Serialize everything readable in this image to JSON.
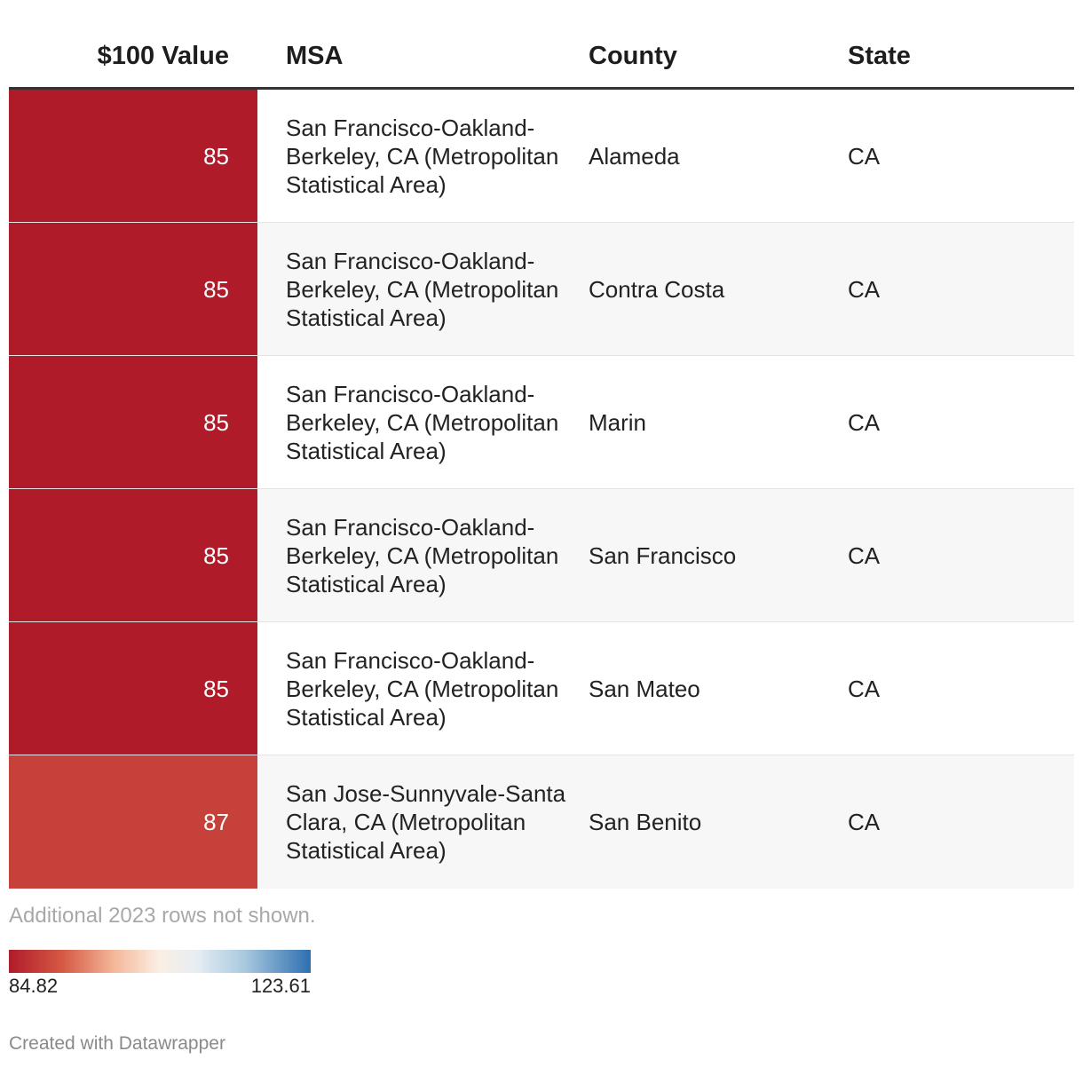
{
  "chart_data": {
    "type": "table",
    "columns": [
      "$100 Value",
      "MSA",
      "County",
      "State"
    ],
    "rows": [
      {
        "value": "85",
        "color": "#b01b2a",
        "msa": "San Francisco-Oakland-Berkeley, CA (Metropolitan Statistical Area)",
        "county": "Alameda",
        "state": "CA"
      },
      {
        "value": "85",
        "color": "#b01b2a",
        "msa": "San Francisco-Oakland-Berkeley, CA (Metropolitan Statistical Area)",
        "county": "Contra Costa",
        "state": "CA"
      },
      {
        "value": "85",
        "color": "#b01b2a",
        "msa": "San Francisco-Oakland-Berkeley, CA (Metropolitan Statistical Area)",
        "county": "Marin",
        "state": "CA"
      },
      {
        "value": "85",
        "color": "#b01b2a",
        "msa": "San Francisco-Oakland-Berkeley, CA (Metropolitan Statistical Area)",
        "county": "San Francisco",
        "state": "CA"
      },
      {
        "value": "85",
        "color": "#b01b2a",
        "msa": "San Francisco-Oakland-Berkeley, CA (Metropolitan Statistical Area)",
        "county": "San Mateo",
        "state": "CA"
      },
      {
        "value": "87",
        "color": "#c6413a",
        "msa": "San Jose-Sunnyvale-Santa Clara, CA (Metropolitan Statistical Area)",
        "county": "San Benito",
        "state": "CA"
      }
    ],
    "note": "Additional 2023 rows not shown.",
    "legend": {
      "min_label": "84.82",
      "max_label": "123.61",
      "min_color": "#b01b2a",
      "max_color": "#2e6fb0"
    }
  },
  "footer": {
    "credit": "Created with Datawrapper"
  }
}
